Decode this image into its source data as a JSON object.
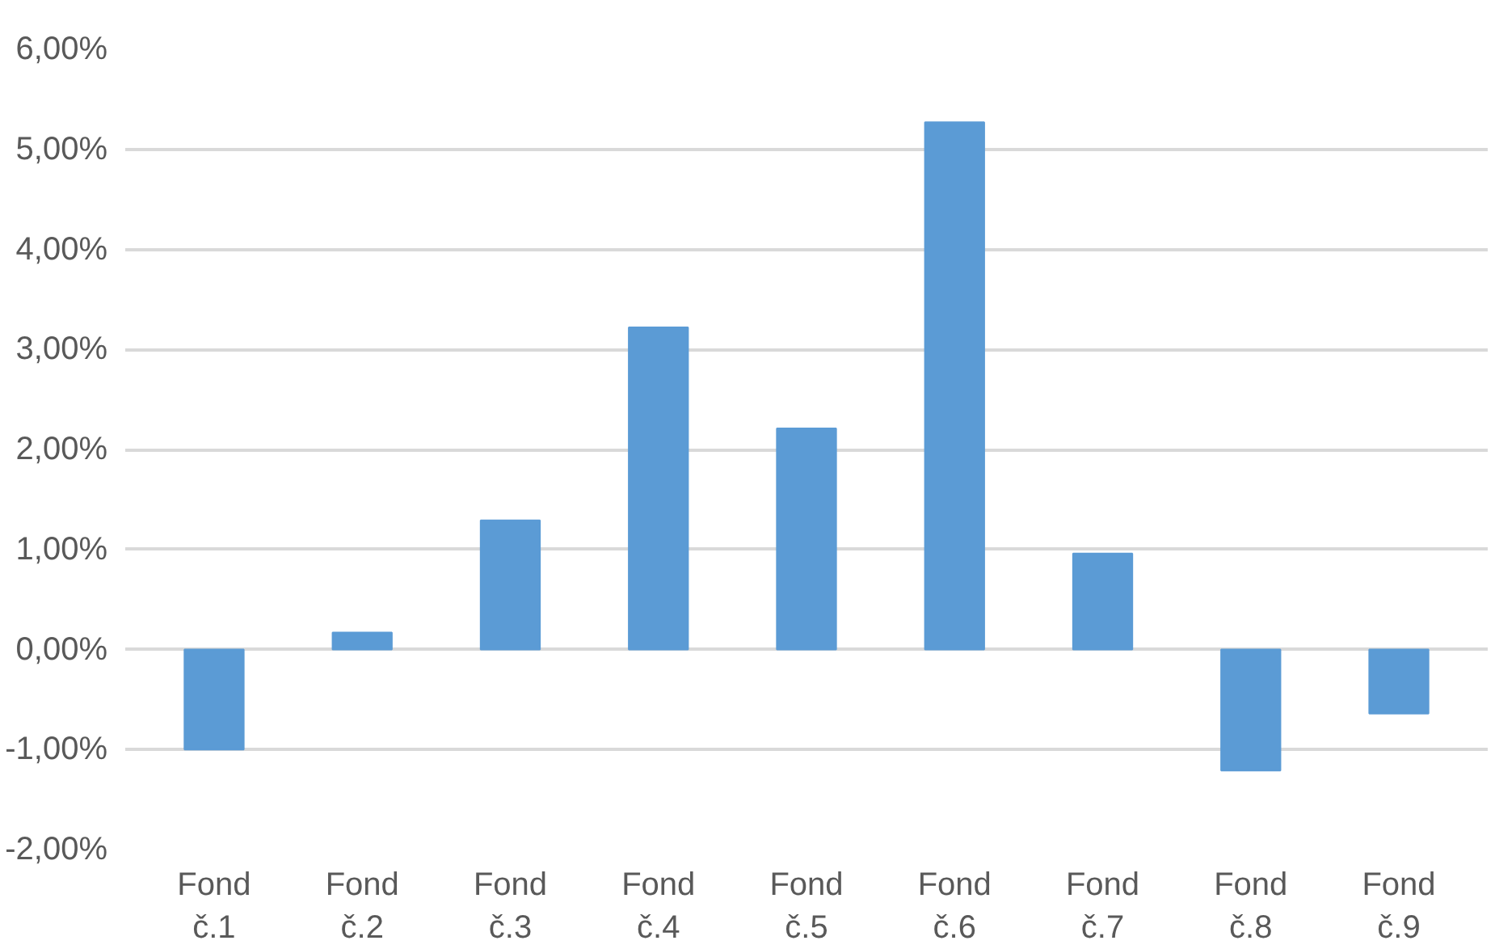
{
  "chart_data": {
    "type": "bar",
    "categories": [
      "Fond č.1",
      "Fond č.2",
      "Fond č.3",
      "Fond č.4",
      "Fond č.5",
      "Fond č.6",
      "Fond č.7",
      "Fond č.8",
      "Fond č.9"
    ],
    "values": [
      -1.0,
      0.17,
      1.29,
      3.22,
      2.21,
      5.27,
      0.96,
      -1.21,
      -0.64
    ],
    "color": "#5b9bd5",
    "ylim": [
      -2,
      6
    ],
    "yticks": [
      {
        "value": -2,
        "label": "-2,00%"
      },
      {
        "value": -1,
        "label": "-1,00%"
      },
      {
        "value": 0,
        "label": "0,00%"
      },
      {
        "value": 1,
        "label": "1,00%"
      },
      {
        "value": 2,
        "label": "2,00%"
      },
      {
        "value": 3,
        "label": "3,00%"
      },
      {
        "value": 4,
        "label": "4,00%"
      },
      {
        "value": 5,
        "label": "5,00%"
      },
      {
        "value": 6,
        "label": "6,00%"
      }
    ],
    "grid": "y"
  }
}
